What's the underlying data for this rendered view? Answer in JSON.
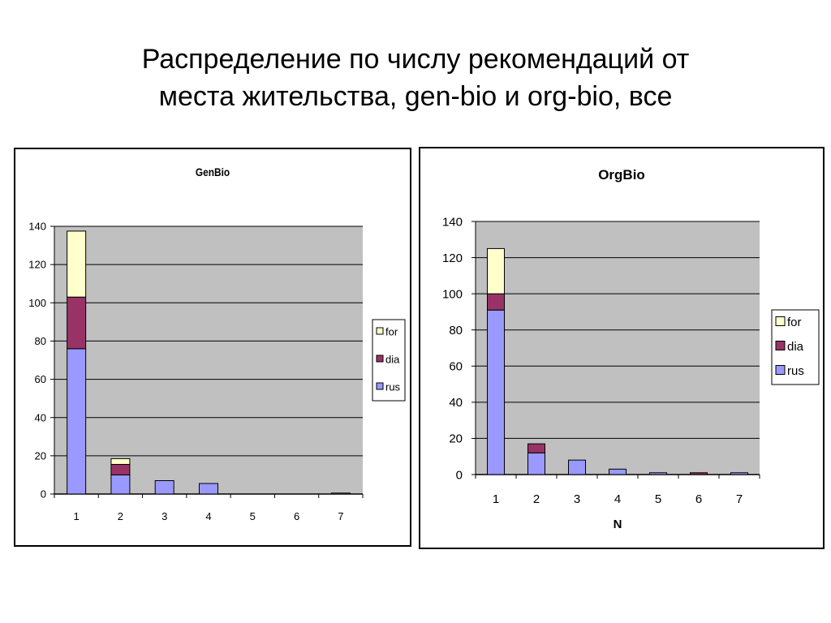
{
  "slide": {
    "title_line1": "Распределение по числу рекомендаций от",
    "title_line2": "места жительства, gen-bio и org-bio, все"
  },
  "colors": {
    "rus": "#9999ff",
    "dia": "#993366",
    "for": "#ffffcc",
    "plot_bg": "#c0c0c0",
    "gridline": "#000000"
  },
  "chart_data": [
    {
      "id": "genbio",
      "type": "bar",
      "stacked": true,
      "title": "GenBio",
      "xlabel": "",
      "ylabel": "",
      "categories": [
        "1",
        "2",
        "3",
        "4",
        "5",
        "6",
        "7"
      ],
      "ylim": [
        0,
        140
      ],
      "yticks": [
        0,
        20,
        40,
        60,
        80,
        100,
        120,
        140
      ],
      "grid": true,
      "legend_position": "right",
      "series": [
        {
          "name": "rus",
          "values": [
            76,
            10,
            7,
            5.5,
            0,
            0,
            0.5
          ]
        },
        {
          "name": "dia",
          "values": [
            27,
            5.5,
            0,
            0,
            0,
            0,
            0
          ]
        },
        {
          "name": "for",
          "values": [
            34.5,
            3,
            0,
            0,
            0,
            0,
            0
          ]
        }
      ],
      "legend_order": [
        "for",
        "dia",
        "rus"
      ]
    },
    {
      "id": "orgbio",
      "type": "bar",
      "stacked": true,
      "title": "OrgBio",
      "xlabel": "N",
      "ylabel": "",
      "categories": [
        "1",
        "2",
        "3",
        "4",
        "5",
        "6",
        "7"
      ],
      "ylim": [
        0,
        140
      ],
      "yticks": [
        0,
        20,
        40,
        60,
        80,
        100,
        120,
        140
      ],
      "grid": true,
      "legend_position": "right",
      "series": [
        {
          "name": "rus",
          "values": [
            91,
            12,
            8,
            3,
            1,
            0,
            1
          ]
        },
        {
          "name": "dia",
          "values": [
            9,
            5,
            0,
            0,
            0,
            1,
            0
          ]
        },
        {
          "name": "for",
          "values": [
            25,
            0,
            0,
            0,
            0,
            0,
            0
          ]
        }
      ],
      "legend_order": [
        "for",
        "dia",
        "rus"
      ]
    }
  ]
}
